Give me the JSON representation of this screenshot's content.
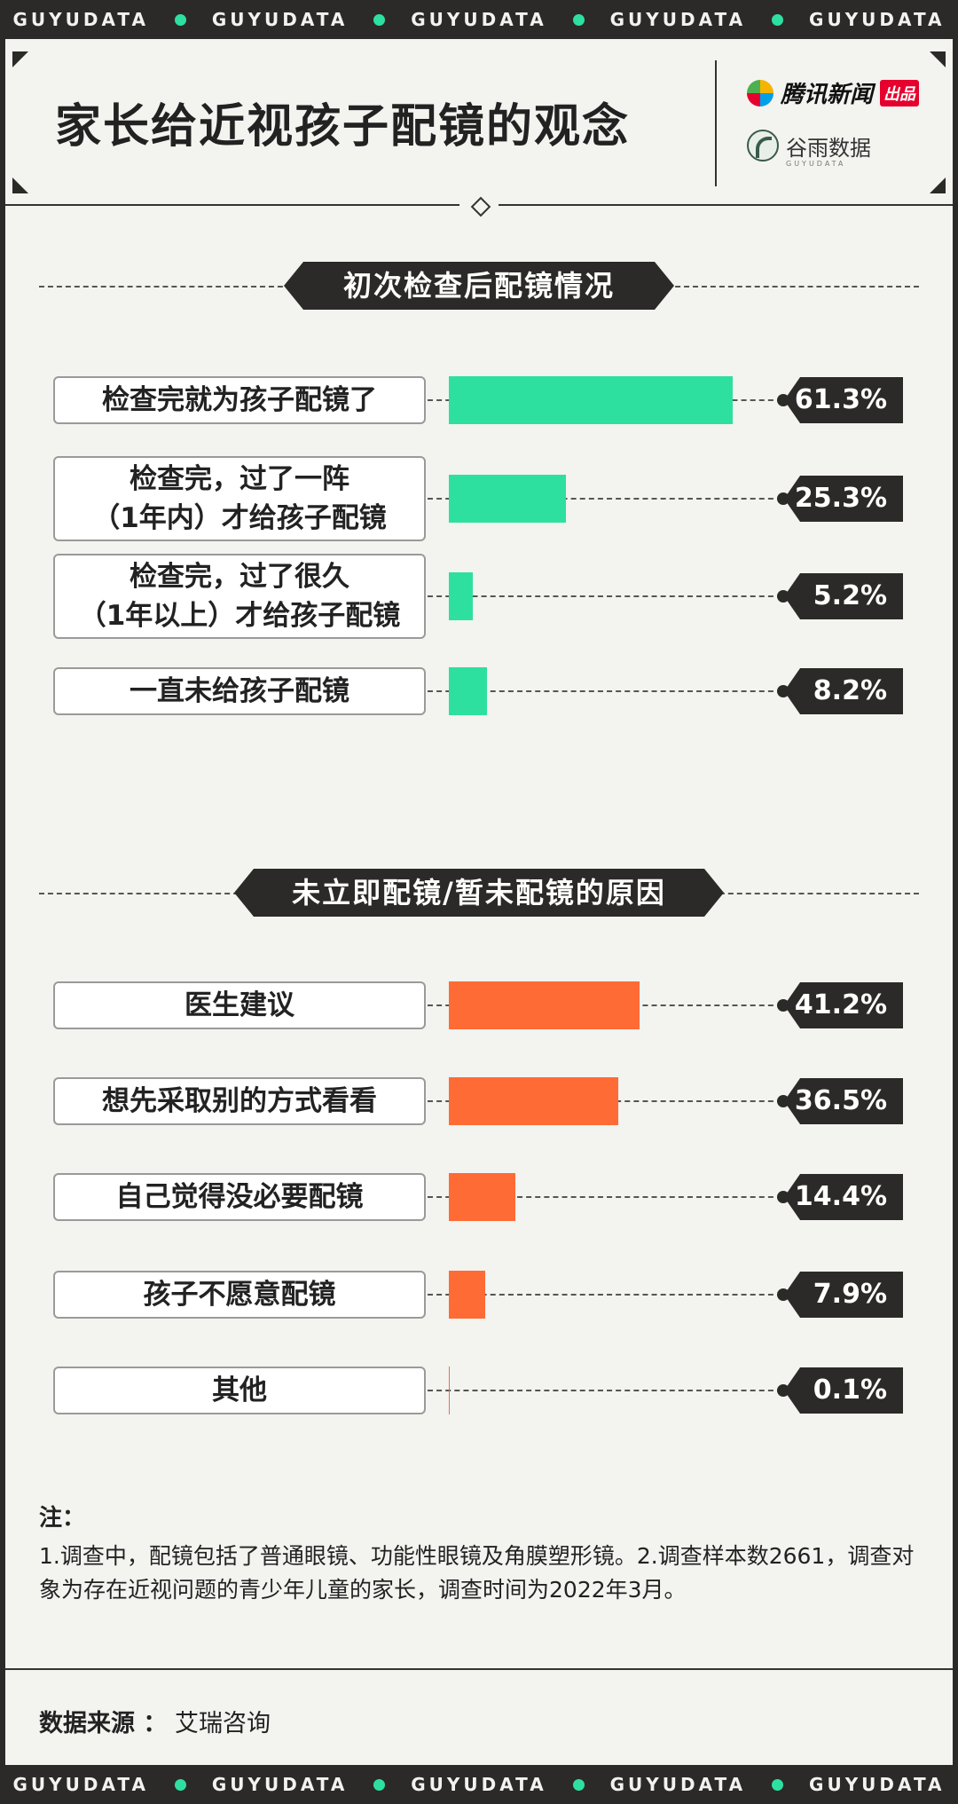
{
  "watermark": "GUYUDATA",
  "title": "家长给近视孩子配镜的观念",
  "brand_tencent": {
    "name": "腾讯新闻",
    "tag": "出品"
  },
  "brand_guyu": {
    "name": "谷雨数据",
    "sub": "GUYUDATA"
  },
  "colors": {
    "teal": "#2ee0a0",
    "orange": "#ff6b35",
    "dark": "#2b2a28"
  },
  "chart_data": [
    {
      "type": "bar",
      "title": "初次检查后配镜情况",
      "unit": "%",
      "categories": [
        [
          "检查完就为孩子配镜了"
        ],
        [
          "检查完，过了一阵",
          "（1年内）才给孩子配镜"
        ],
        [
          "检查完，过了很久",
          "（1年以上）才给孩子配镜"
        ],
        [
          "一直未给孩子配镜"
        ]
      ],
      "values": [
        61.3,
        25.3,
        5.2,
        8.2
      ],
      "labels": [
        "61.3%",
        "25.3%",
        "5.2%",
        "8.2%"
      ],
      "color": "#2ee0a0"
    },
    {
      "type": "bar",
      "title": "未立即配镜/暂未配镜的原因",
      "unit": "%",
      "categories": [
        [
          "医生建议"
        ],
        [
          "想先采取别的方式看看"
        ],
        [
          "自己觉得没必要配镜"
        ],
        [
          "孩子不愿意配镜"
        ],
        [
          "其他"
        ]
      ],
      "values": [
        41.2,
        36.5,
        14.4,
        7.9,
        0.1
      ],
      "labels": [
        "41.2%",
        "36.5%",
        "14.4%",
        "7.9%",
        "0.1%"
      ],
      "color": "#ff6b35"
    }
  ],
  "notes": {
    "title": "注：",
    "text": "1.调查中，配镜包括了普通眼镜、功能性眼镜及角膜塑形镜。2.调查样本数2661，调查对象为存在近视问题的青少年儿童的家长，调查时间为2022年3月。"
  },
  "source": {
    "label": "数据来源 ：",
    "value": "艾瑞咨询"
  }
}
